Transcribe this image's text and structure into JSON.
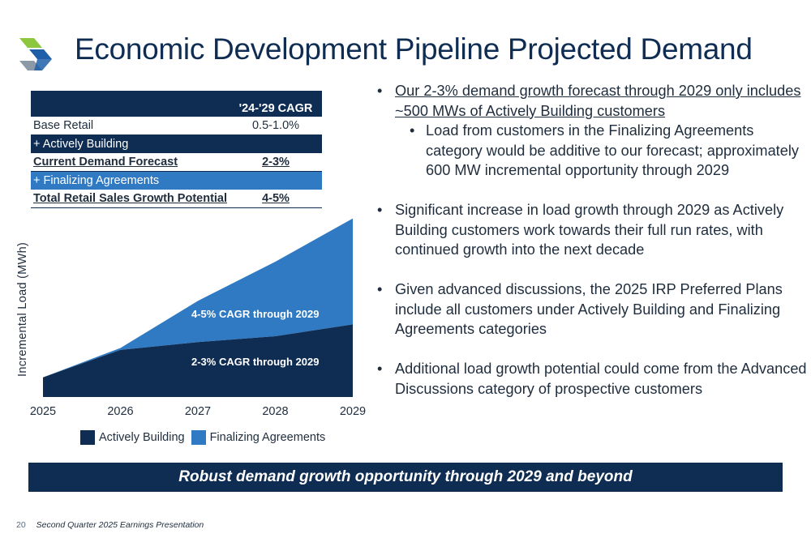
{
  "header": {
    "title": "Economic Development Pipeline Projected Demand"
  },
  "colors": {
    "navy": "#0f2d52",
    "blue": "#2f7ac3",
    "logo_green": "#8dc63f",
    "logo_gray": "#8c99a6"
  },
  "table": {
    "header_value": "'24-'29 CAGR",
    "rows": [
      {
        "label": "Base Retail",
        "value": "0.5-1.0%"
      },
      {
        "label": "+ Actively Building",
        "value": ""
      },
      {
        "label": "Current Demand Forecast",
        "value": "2-3%"
      },
      {
        "label": "+ Finalizing Agreements",
        "value": ""
      },
      {
        "label": "Total Retail Sales Growth Potential",
        "value": "4-5%"
      }
    ]
  },
  "chart_data": {
    "type": "area",
    "stacked": true,
    "x": [
      "2025",
      "2026",
      "2027",
      "2028",
      "2029"
    ],
    "ylabel": "Incremental Load (MWh)",
    "yticks_shown": false,
    "series": [
      {
        "name": "Actively Building",
        "color": "#0f2d52",
        "values": [
          1.0,
          2.4,
          2.8,
          3.1,
          3.7
        ]
      },
      {
        "name": "Finalizing Agreements",
        "color": "#2f7ac3",
        "values": [
          0.0,
          0.1,
          2.1,
          3.8,
          5.4
        ]
      }
    ],
    "ylim": [
      0,
      9.5
    ],
    "annotations": [
      "4-5% CAGR through 2029",
      "2-3% CAGR through 2029"
    ],
    "legend_position": "bottom"
  },
  "bullets": [
    {
      "level": 1,
      "underline": true,
      "text": "Our 2-3% demand growth forecast through 2029 only includes ~500 MWs of Actively Building customers"
    },
    {
      "level": 2,
      "underline": false,
      "text": "Load from customers in the Finalizing Agreements category would be additive to our forecast; approximately 600 MW incremental opportunity through 2029"
    },
    {
      "level": 1,
      "underline": false,
      "text": "Significant increase in load growth through 2029 as Actively Building customers work towards their full run rates, with continued growth into the next decade"
    },
    {
      "level": 1,
      "underline": false,
      "text": "Given advanced discussions, the 2025 IRP Preferred Plans include all customers under Actively Building and Finalizing Agreements categories"
    },
    {
      "level": 1,
      "underline": false,
      "text": "Additional load growth potential could come from the Advanced Discussions category of prospective customers"
    }
  ],
  "banner": "Robust demand growth opportunity through 2029 and beyond",
  "footer": {
    "page": "20",
    "text": "Second Quarter 2025 Earnings Presentation"
  }
}
